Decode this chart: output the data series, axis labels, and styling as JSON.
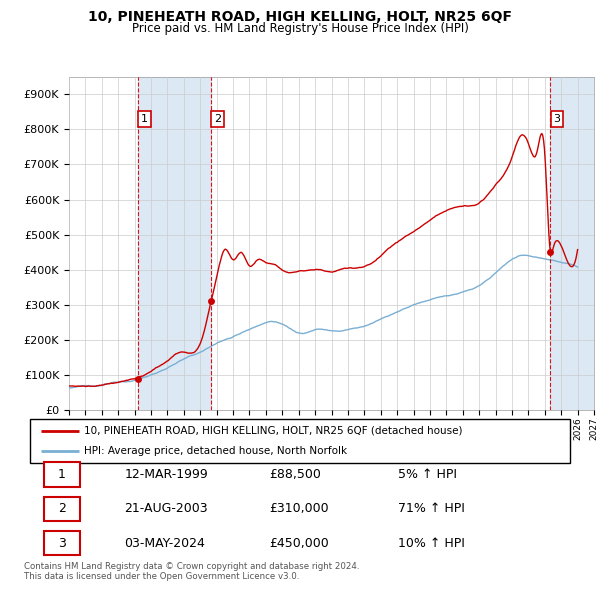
{
  "title": "10, PINEHEATH ROAD, HIGH KELLING, HOLT, NR25 6QF",
  "subtitle": "Price paid vs. HM Land Registry's House Price Index (HPI)",
  "ylim": [
    0,
    950000
  ],
  "xlim_start": 1995.0,
  "xlim_end": 2027.0,
  "sale_dates": [
    1999.19,
    2003.64,
    2024.34
  ],
  "sale_prices": [
    88500,
    310000,
    450000
  ],
  "sale_labels": [
    "1",
    "2",
    "3"
  ],
  "legend_label_red": "10, PINEHEATH ROAD, HIGH KELLING, HOLT, NR25 6QF (detached house)",
  "legend_label_blue": "HPI: Average price, detached house, North Norfolk",
  "table_data": [
    [
      "1",
      "12-MAR-1999",
      "£88,500",
      "5% ↑ HPI"
    ],
    [
      "2",
      "21-AUG-2003",
      "£310,000",
      "71% ↑ HPI"
    ],
    [
      "3",
      "03-MAY-2024",
      "£450,000",
      "10% ↑ HPI"
    ]
  ],
  "footer": "Contains HM Land Registry data © Crown copyright and database right 2024.\nThis data is licensed under the Open Government Licence v3.0.",
  "red_color": "#cc0000",
  "blue_color": "#7aafd4",
  "shade_color": "#dce9f5",
  "vline_color": "#cc0000",
  "grid_color": "#cccccc",
  "hpi_anchors": [
    [
      1995.0,
      65000
    ],
    [
      1996.0,
      68000
    ],
    [
      1997.0,
      72000
    ],
    [
      1998.0,
      78000
    ],
    [
      1999.0,
      85000
    ],
    [
      2000.0,
      100000
    ],
    [
      2001.0,
      120000
    ],
    [
      2002.0,
      145000
    ],
    [
      2003.0,
      165000
    ],
    [
      2004.0,
      190000
    ],
    [
      2005.0,
      210000
    ],
    [
      2006.0,
      230000
    ],
    [
      2007.0,
      250000
    ],
    [
      2008.0,
      245000
    ],
    [
      2009.0,
      220000
    ],
    [
      2010.0,
      230000
    ],
    [
      2011.0,
      225000
    ],
    [
      2012.0,
      230000
    ],
    [
      2013.0,
      240000
    ],
    [
      2014.0,
      260000
    ],
    [
      2015.0,
      280000
    ],
    [
      2016.0,
      300000
    ],
    [
      2017.0,
      315000
    ],
    [
      2018.0,
      325000
    ],
    [
      2019.0,
      335000
    ],
    [
      2020.0,
      355000
    ],
    [
      2021.0,
      390000
    ],
    [
      2022.0,
      430000
    ],
    [
      2023.0,
      440000
    ],
    [
      2024.0,
      430000
    ],
    [
      2025.0,
      420000
    ],
    [
      2026.0,
      410000
    ]
  ],
  "red_anchors": [
    [
      1995.0,
      65000
    ],
    [
      1996.0,
      68000
    ],
    [
      1997.0,
      72000
    ],
    [
      1998.0,
      80000
    ],
    [
      1999.0,
      88500
    ],
    [
      2000.0,
      110000
    ],
    [
      2001.0,
      140000
    ],
    [
      2002.0,
      165000
    ],
    [
      2003.0,
      190000
    ],
    [
      2003.64,
      310000
    ],
    [
      2004.0,
      380000
    ],
    [
      2004.5,
      460000
    ],
    [
      2005.0,
      430000
    ],
    [
      2005.5,
      450000
    ],
    [
      2006.0,
      410000
    ],
    [
      2006.5,
      430000
    ],
    [
      2007.0,
      420000
    ],
    [
      2007.5,
      415000
    ],
    [
      2008.0,
      400000
    ],
    [
      2009.0,
      395000
    ],
    [
      2010.0,
      400000
    ],
    [
      2011.0,
      395000
    ],
    [
      2012.0,
      405000
    ],
    [
      2013.0,
      410000
    ],
    [
      2014.0,
      440000
    ],
    [
      2015.0,
      480000
    ],
    [
      2016.0,
      510000
    ],
    [
      2017.0,
      540000
    ],
    [
      2018.0,
      570000
    ],
    [
      2019.0,
      580000
    ],
    [
      2020.0,
      590000
    ],
    [
      2021.0,
      640000
    ],
    [
      2022.0,
      720000
    ],
    [
      2022.5,
      780000
    ],
    [
      2023.0,
      760000
    ],
    [
      2023.5,
      730000
    ],
    [
      2024.0,
      730000
    ],
    [
      2024.34,
      450000
    ],
    [
      2024.5,
      460000
    ],
    [
      2025.0,
      470000
    ],
    [
      2026.0,
      460000
    ]
  ]
}
